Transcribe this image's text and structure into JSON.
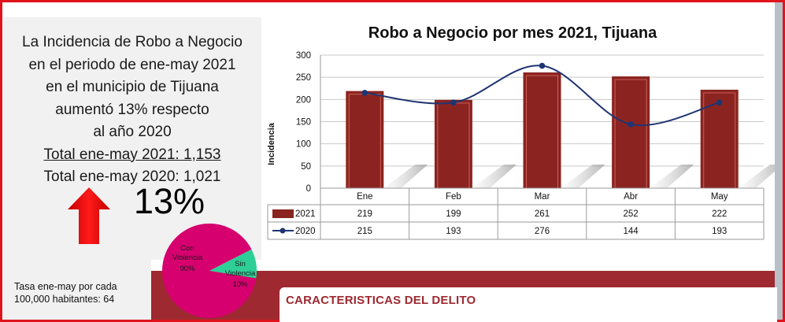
{
  "summary": {
    "line1": "La Incidencia de Robo a Negocio",
    "line2": "en el periodo de ene-may  2021",
    "line3": "en el municipio de Tijuana",
    "line4": "aumentó 13% respecto",
    "line5": "al año 2020",
    "total2021": "Total ene-may 2021:  1,153",
    "total2020": "Total ene-may 2020:  1,021",
    "big_percent": "13%"
  },
  "tasa": {
    "line1": "Tasa ene-may por cada",
    "line2": "100,000  habitantes:  64"
  },
  "section_title": "CARACTERISTICAS DEL DELITO",
  "colors": {
    "frame": "#e0141d",
    "bar": "#8b2420",
    "line": "#1f3572",
    "band": "#9e2930",
    "pie_main": "#d6006e",
    "pie_minor": "#2ecf97",
    "arrow": "#ff0000"
  },
  "icons": {
    "trend": "up-arrow-icon"
  },
  "chart_data": [
    {
      "type": "bar",
      "title": "Robo a Negocio por mes 2021, Tijuana",
      "ylabel": "Incidencia",
      "xlabel": "",
      "ylim": [
        0,
        300
      ],
      "yticks": [
        0,
        50,
        100,
        150,
        200,
        250,
        300
      ],
      "grid": true,
      "categories": [
        "Ene",
        "Feb",
        "Mar",
        "Abr",
        "May"
      ],
      "series": [
        {
          "name": "2021",
          "kind": "bar",
          "values": [
            219,
            199,
            261,
            252,
            222
          ]
        },
        {
          "name": "2020",
          "kind": "line",
          "values": [
            215,
            193,
            276,
            144,
            193
          ]
        }
      ],
      "legend": "data table below the axis"
    },
    {
      "type": "pie",
      "slices": [
        {
          "label": "Con Violencia",
          "value_label": "90%",
          "value": 90
        },
        {
          "label": "Sin Violencia",
          "value_label": "10%",
          "value": 10
        }
      ]
    }
  ]
}
